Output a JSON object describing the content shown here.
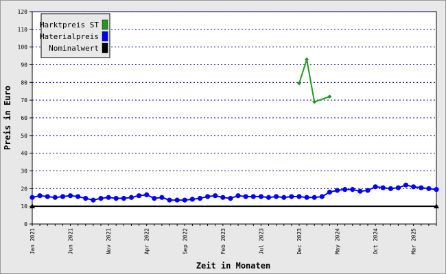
{
  "chart_data": {
    "type": "line",
    "xlabel": "Zeit in Monaten",
    "ylabel": "Preis in Euro",
    "ylim": [
      0,
      120
    ],
    "yticks": [
      0,
      10,
      20,
      30,
      40,
      50,
      60,
      70,
      80,
      90,
      100,
      110,
      120
    ],
    "grid": "horizontal dotted",
    "legend_position": "top-left",
    "x_tick_labels": [
      {
        "label": "Jan 2021",
        "month": 0
      },
      {
        "label": "Jun 2021",
        "month": 5
      },
      {
        "label": "Nov 2021",
        "month": 10
      },
      {
        "label": "Apr 2022",
        "month": 15
      },
      {
        "label": "Sep 2022",
        "month": 20
      },
      {
        "label": "Feb 2023",
        "month": 25
      },
      {
        "label": "Jul 2023",
        "month": 30
      },
      {
        "label": "Dec 2023",
        "month": 35
      },
      {
        "label": "May 2024",
        "month": 40
      },
      {
        "label": "Oct 2024",
        "month": 45
      },
      {
        "label": "Mar 2025",
        "month": 50
      }
    ],
    "x_months": [
      "Jan 2021",
      "Feb 2021",
      "Mar 2021",
      "Apr 2021",
      "May 2021",
      "Jun 2021",
      "Jul 2021",
      "Aug 2021",
      "Sep 2021",
      "Oct 2021",
      "Nov 2021",
      "Dec 2021",
      "Jan 2022",
      "Feb 2022",
      "Mar 2022",
      "Apr 2022",
      "May 2022",
      "Jun 2022",
      "Jul 2022",
      "Aug 2022",
      "Sep 2022",
      "Oct 2022",
      "Nov 2022",
      "Dec 2022",
      "Jan 2023",
      "Feb 2023",
      "Mar 2023",
      "Apr 2023",
      "May 2023",
      "Jun 2023",
      "Jul 2023",
      "Aug 2023",
      "Sep 2023",
      "Oct 2023",
      "Nov 2023",
      "Dec 2023",
      "Jan 2024",
      "Feb 2024",
      "Mar 2024",
      "Apr 2024",
      "May 2024",
      "Jun 2024",
      "Jul 2024",
      "Aug 2024",
      "Sep 2024",
      "Oct 2024",
      "Nov 2024",
      "Dec 2024",
      "Jan 2025",
      "Feb 2025",
      "Mar 2025",
      "Apr 2025",
      "May 2025",
      "Jun 2025"
    ],
    "series": [
      {
        "name": "Marktpreis ST",
        "color": "#1f9a1f",
        "points": [
          {
            "month": 35,
            "value": 79.5
          },
          {
            "month": 36,
            "value": 93
          },
          {
            "month": 37,
            "value": 69
          },
          {
            "month": 39,
            "value": 72
          }
        ]
      },
      {
        "name": "Materialpreis",
        "color": "#0000ff",
        "values": [
          15,
          16,
          15.5,
          15,
          15.5,
          16,
          15.5,
          14.5,
          13.5,
          14.5,
          15,
          14.5,
          14.5,
          15,
          16,
          16.5,
          14.5,
          15,
          13.5,
          13.5,
          13.5,
          14,
          14.5,
          15.5,
          16,
          15,
          14.5,
          16,
          15.5,
          15.5,
          15.5,
          15,
          15.5,
          15,
          15.5,
          15.5,
          15,
          15,
          15.5,
          18,
          19,
          19.5,
          19.5,
          18.5,
          19,
          21,
          20.5,
          20,
          20.5,
          22,
          21,
          20.5,
          20,
          19.5
        ]
      },
      {
        "name": "Nominalwert",
        "color": "#000000",
        "points": [
          {
            "month": 0,
            "value": 10
          },
          {
            "month": 53,
            "value": 10
          }
        ]
      }
    ]
  }
}
